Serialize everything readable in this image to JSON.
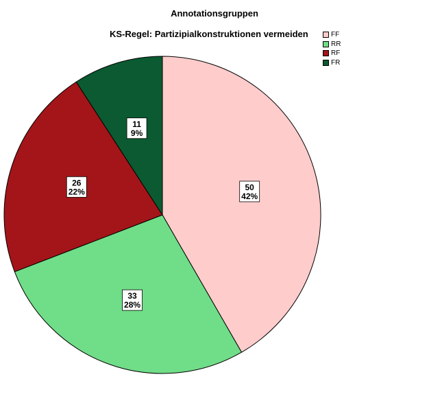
{
  "chart_data": {
    "type": "pie",
    "title": "Annotationsgruppen",
    "subtitle": "KS-Regel: Partizipialkonstruktionen vermeiden",
    "categories": [
      "FF",
      "RR",
      "RF",
      "FR"
    ],
    "values": [
      50,
      33,
      26,
      11
    ],
    "percent_labels": [
      "42%",
      "28%",
      "22%",
      "9%"
    ],
    "colors": [
      "#FFCCCC",
      "#70DD88",
      "#A31519",
      "#0B5A31"
    ],
    "legend_position": "top-right",
    "start_angle": "12 o'clock",
    "direction": "clockwise"
  }
}
